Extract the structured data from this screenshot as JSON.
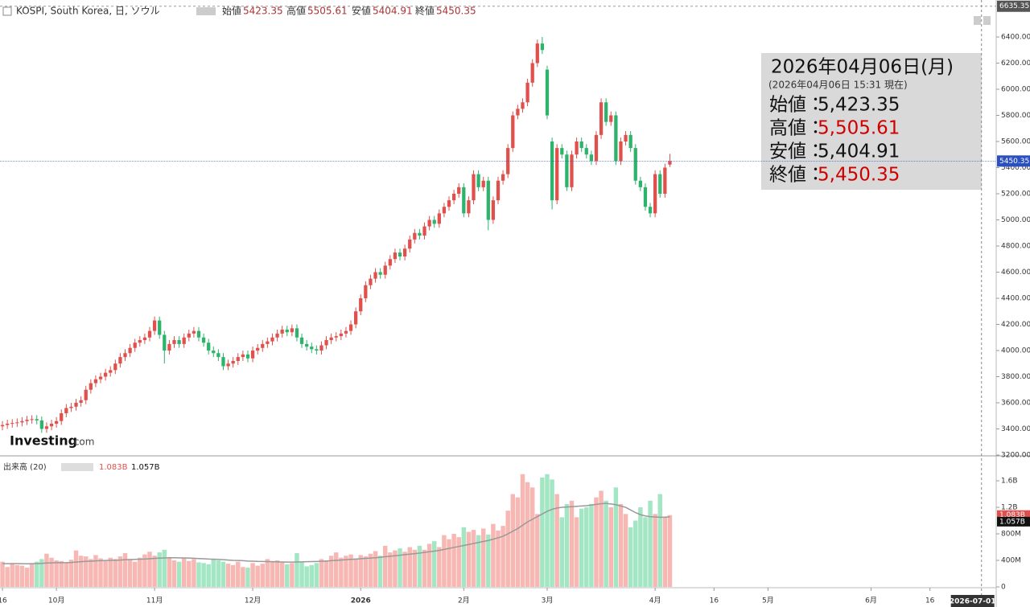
{
  "header": {
    "symbol": "KOSPI, South Korea, 日, ソウル",
    "ohlc_labels": [
      "始値",
      "高値",
      "安値",
      "終値"
    ]
  },
  "info_box": {
    "date": "2026年04月06日(月)",
    "asof": "(2026年04月06日 15:31 現在)",
    "rows": [
      {
        "label": "始値：",
        "value": "5,423.35",
        "color": "#111111"
      },
      {
        "label": "高値：",
        "value": "5,505.61",
        "color": "#d00000"
      },
      {
        "label": "安値：",
        "value": "5,404.91",
        "color": "#111111"
      },
      {
        "label": "終値：",
        "value": "5,450.35",
        "color": "#d00000"
      }
    ]
  },
  "logo": {
    "brand": "Investing",
    "suffix": ".com"
  },
  "chart_data": [
    {
      "type": "candlestick",
      "up_color": "#e0504c",
      "down_color": "#2db36b",
      "line_color": "#2a4fc0",
      "top_value": 6635.35,
      "open": [
        3420,
        3430,
        3440,
        3445,
        3450,
        3460,
        3470,
        3475,
        3465,
        3400,
        3420,
        3440,
        3460,
        3520,
        3560,
        3570,
        3600,
        3620,
        3700,
        3750,
        3780,
        3800,
        3830,
        3850,
        3900,
        3950,
        3980,
        4020,
        4060,
        4080,
        4100,
        4150,
        4230,
        4120,
        4000,
        4050,
        4080,
        4050,
        4100,
        4130,
        4150,
        4100,
        4060,
        4000,
        3980,
        3950,
        3880,
        3900,
        3920,
        3950,
        3970,
        3940,
        4000,
        4020,
        4050,
        4070,
        4100,
        4130,
        4160,
        4140,
        4170,
        4100,
        4050,
        4030,
        4010,
        4000,
        4040,
        4080,
        4100,
        4110,
        4130,
        4150,
        4200,
        4300,
        4400,
        4500,
        4550,
        4600,
        4580,
        4650,
        4700,
        4750,
        4720,
        4780,
        4850,
        4900,
        4880,
        4950,
        5000,
        4970,
        5050,
        5100,
        5150,
        5200,
        5250,
        5050,
        5150,
        5350,
        5250,
        5300,
        5000,
        5150,
        5300,
        5350,
        5550,
        5800,
        5850,
        5900,
        6050,
        6200,
        6350,
        6150,
        5600,
        5150,
        5550,
        5500,
        5250,
        5500,
        5600,
        5550,
        5500,
        5450,
        5650,
        5900,
        5750,
        5800,
        5450,
        5600,
        5650,
        5550,
        5300,
        5250,
        5100,
        5050,
        5350,
        5200,
        5423.35
      ],
      "high": [
        3460,
        3470,
        3475,
        3480,
        3490,
        3500,
        3505,
        3505,
        3495,
        3450,
        3470,
        3490,
        3550,
        3590,
        3600,
        3630,
        3650,
        3730,
        3780,
        3810,
        3830,
        3860,
        3880,
        3930,
        3980,
        4010,
        4050,
        4090,
        4110,
        4130,
        4180,
        4260,
        4260,
        4150,
        4080,
        4110,
        4110,
        4130,
        4160,
        4180,
        4180,
        4130,
        4090,
        4030,
        4010,
        3980,
        3930,
        3950,
        3980,
        4000,
        4000,
        4030,
        4050,
        4080,
        4100,
        4130,
        4160,
        4190,
        4190,
        4200,
        4200,
        4130,
        4080,
        4060,
        4040,
        4070,
        4110,
        4130,
        4140,
        4160,
        4180,
        4230,
        4330,
        4430,
        4530,
        4580,
        4630,
        4630,
        4680,
        4730,
        4780,
        4780,
        4810,
        4880,
        4930,
        4930,
        4980,
        5030,
        5030,
        5080,
        5130,
        5180,
        5230,
        5280,
        5280,
        5180,
        5380,
        5380,
        5330,
        5330,
        5180,
        5330,
        5380,
        5580,
        5830,
        5880,
        5930,
        6080,
        6230,
        6380,
        6400,
        6180,
        5630,
        5580,
        5580,
        5530,
        5530,
        5630,
        5630,
        5580,
        5530,
        5680,
        5930,
        5930,
        5830,
        5830,
        5630,
        5680,
        5680,
        5580,
        5330,
        5280,
        5130,
        5380,
        5380,
        5430,
        5505.61
      ],
      "low": [
        3390,
        3400,
        3410,
        3415,
        3420,
        3430,
        3440,
        3435,
        3370,
        3370,
        3390,
        3410,
        3430,
        3490,
        3530,
        3540,
        3570,
        3590,
        3670,
        3720,
        3750,
        3770,
        3800,
        3820,
        3870,
        3920,
        3950,
        3990,
        4030,
        4050,
        4070,
        4120,
        4090,
        3900,
        3970,
        4020,
        4020,
        4020,
        4070,
        4100,
        4070,
        4030,
        3970,
        3950,
        3920,
        3850,
        3850,
        3870,
        3890,
        3920,
        3910,
        3910,
        3970,
        3990,
        4020,
        4040,
        4070,
        4100,
        4110,
        4110,
        4070,
        4020,
        4000,
        3980,
        3970,
        3970,
        4010,
        4050,
        4070,
        4080,
        4100,
        4120,
        4170,
        4270,
        4370,
        4470,
        4520,
        4550,
        4550,
        4620,
        4670,
        4690,
        4690,
        4750,
        4820,
        4850,
        4850,
        4920,
        4940,
        4940,
        5020,
        5070,
        5120,
        5170,
        5020,
        5020,
        5120,
        5220,
        5220,
        4920,
        4970,
        5120,
        5270,
        5320,
        5520,
        5770,
        5820,
        5870,
        6020,
        6170,
        6270,
        5770,
        5080,
        5120,
        5470,
        5220,
        5220,
        5470,
        5520,
        5470,
        5420,
        5420,
        5620,
        5720,
        5720,
        5420,
        5420,
        5570,
        5520,
        5270,
        5220,
        5070,
        5020,
        5020,
        5170,
        5170,
        5404.91
      ],
      "close": [
        3430,
        3440,
        3445,
        3450,
        3460,
        3470,
        3475,
        3465,
        3400,
        3420,
        3440,
        3460,
        3520,
        3560,
        3570,
        3600,
        3620,
        3700,
        3750,
        3780,
        3800,
        3830,
        3850,
        3900,
        3950,
        3980,
        4020,
        4060,
        4080,
        4100,
        4150,
        4230,
        4120,
        4000,
        4050,
        4080,
        4050,
        4100,
        4130,
        4150,
        4100,
        4060,
        4000,
        3980,
        3950,
        3880,
        3900,
        3920,
        3950,
        3970,
        3940,
        4000,
        4020,
        4050,
        4070,
        4100,
        4130,
        4160,
        4140,
        4170,
        4100,
        4050,
        4030,
        4010,
        4000,
        4040,
        4080,
        4100,
        4110,
        4130,
        4150,
        4200,
        4300,
        4400,
        4500,
        4550,
        4600,
        4580,
        4650,
        4700,
        4750,
        4720,
        4780,
        4850,
        4900,
        4880,
        4950,
        5000,
        4970,
        5050,
        5100,
        5150,
        5200,
        5250,
        5050,
        5150,
        5350,
        5250,
        5300,
        5000,
        5150,
        5300,
        5350,
        5550,
        5800,
        5850,
        5900,
        6050,
        6200,
        6350,
        6300,
        5800,
        5150,
        5550,
        5500,
        5250,
        5500,
        5600,
        5550,
        5500,
        5450,
        5650,
        5900,
        5750,
        5800,
        5450,
        5600,
        5650,
        5550,
        5300,
        5250,
        5100,
        5050,
        5350,
        5200,
        5400,
        5450.35
      ],
      "xlim": [
        -0.5,
        202.5
      ],
      "xticks": [
        {
          "value": 0,
          "label": "16"
        },
        {
          "value": 11,
          "label": "10月"
        },
        {
          "value": 31,
          "label": "11月"
        },
        {
          "value": 51,
          "label": "12月"
        },
        {
          "value": 73,
          "label": "2026"
        },
        {
          "value": 94,
          "label": "2月"
        },
        {
          "value": 111,
          "label": "3月"
        },
        {
          "value": 133,
          "label": "4月"
        },
        {
          "value": 145,
          "label": "16"
        },
        {
          "value": 156,
          "label": "5月"
        },
        {
          "value": 177,
          "label": "6月"
        },
        {
          "value": 189,
          "label": "16"
        },
        {
          "value": 199.5,
          "label": "2026-07-01"
        }
      ],
      "ylim": [
        3200,
        6683
      ],
      "yticks": [
        {
          "value": 3200,
          "label": "3200.00"
        },
        {
          "value": 3400,
          "label": "3400.00"
        },
        {
          "value": 3600,
          "label": "3600.00"
        },
        {
          "value": 3800,
          "label": "3800.00"
        },
        {
          "value": 4000,
          "label": "4000.00"
        },
        {
          "value": 4200,
          "label": "4200.00"
        },
        {
          "value": 4400,
          "label": "4400.00"
        },
        {
          "value": 4600,
          "label": "4600.00"
        },
        {
          "value": 4800,
          "label": "4800.00"
        },
        {
          "value": 5000,
          "label": "5000.00"
        },
        {
          "value": 5200,
          "label": "5200.00"
        },
        {
          "value": 5400,
          "label": "5400.00"
        },
        {
          "value": 5600,
          "label": "5600.00"
        },
        {
          "value": 5800,
          "label": "5800.00"
        },
        {
          "value": 6000,
          "label": "6000.00"
        },
        {
          "value": 6200,
          "label": "6200.00"
        },
        {
          "value": 6400,
          "label": "6400.00"
        }
      ]
    },
    {
      "type": "bar",
      "title": "出来高 (20)",
      "up_color": "#f7b8b4",
      "down_color": "#a3e6c4",
      "ma_color": "#999999",
      "last_label": "1.083B",
      "ma_label": "1.057B",
      "last_color": "#e0504c",
      "values": [
        380,
        300,
        350,
        330,
        320,
        290,
        350,
        380,
        420,
        500,
        440,
        400,
        390,
        360,
        410,
        550,
        470,
        460,
        420,
        480,
        430,
        390,
        440,
        420,
        460,
        510,
        420,
        380,
        440,
        490,
        530,
        470,
        520,
        560,
        450,
        400,
        380,
        430,
        390,
        420,
        370,
        360,
        340,
        420,
        400,
        380,
        350,
        330,
        380,
        300,
        290,
        360,
        320,
        350,
        420,
        390,
        400,
        380,
        340,
        360,
        510,
        380,
        310,
        330,
        360,
        420,
        400,
        470,
        520,
        440,
        470,
        490,
        430,
        480,
        460,
        500,
        540,
        470,
        620,
        520,
        550,
        580,
        530,
        600,
        560,
        620,
        560,
        650,
        690,
        600,
        780,
        720,
        800,
        750,
        900,
        830,
        860,
        780,
        880,
        790,
        950,
        850,
        920,
        1150,
        1400,
        1350,
        1700,
        1580,
        1500,
        1100,
        1650,
        1700,
        1620,
        1400,
        1050,
        1250,
        1300,
        1050,
        1180,
        1200,
        1250,
        1350,
        1450,
        1300,
        1200,
        1500,
        1250,
        1100,
        900,
        1000,
        1200,
        1050,
        1300,
        1100,
        1400,
        1050,
        1083
      ],
      "ma_values": [
        350,
        350,
        352,
        352,
        350,
        348,
        350,
        352,
        355,
        360,
        362,
        365,
        366,
        366,
        368,
        375,
        380,
        385,
        388,
        392,
        395,
        398,
        400,
        402,
        405,
        410,
        412,
        415,
        418,
        420,
        425,
        430,
        433,
        437,
        440,
        440,
        438,
        437,
        435,
        432,
        428,
        425,
        420,
        418,
        415,
        410,
        405,
        400,
        398,
        395,
        390,
        388,
        385,
        384,
        382,
        380,
        378,
        376,
        375,
        374,
        376,
        378,
        380,
        382,
        384,
        386,
        390,
        395,
        400,
        405,
        410,
        415,
        420,
        425,
        430,
        435,
        440,
        447,
        455,
        462,
        470,
        478,
        486,
        494,
        502,
        510,
        520,
        530,
        540,
        550,
        565,
        580,
        595,
        610,
        625,
        640,
        655,
        670,
        685,
        700,
        720,
        740,
        765,
        800,
        840,
        880,
        930,
        980,
        1020,
        1060,
        1100,
        1140,
        1170,
        1190,
        1200,
        1205,
        1210,
        1215,
        1220,
        1225,
        1235,
        1245,
        1255,
        1260,
        1250,
        1240,
        1220,
        1200,
        1160,
        1120,
        1090,
        1070,
        1060,
        1055,
        1050,
        1052,
        1057
      ],
      "ylim": [
        0,
        1940
      ],
      "yticks": [
        {
          "value": 0,
          "label": "0"
        },
        {
          "value": 400,
          "label": "400M"
        },
        {
          "value": 800,
          "label": "800M"
        },
        {
          "value": 1200,
          "label": "1.2B"
        },
        {
          "value": 1600,
          "label": "1.6B"
        }
      ]
    }
  ]
}
